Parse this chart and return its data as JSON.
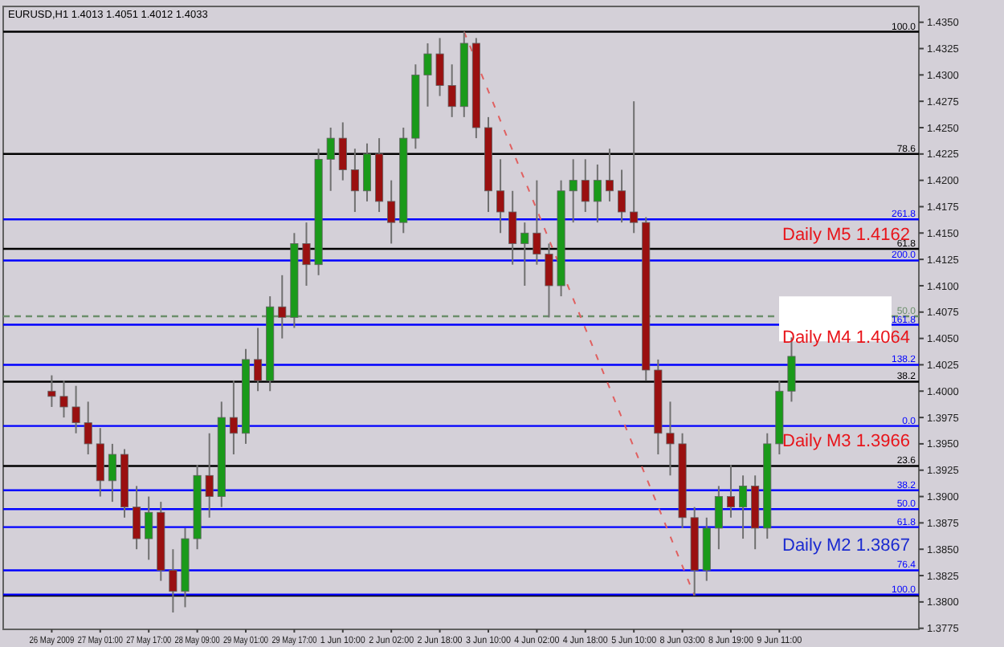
{
  "chart_data": {
    "type": "candlestick",
    "title": "EURUSD,H1  1.4013 1.4051 1.4012 1.4033",
    "categories": [
      "26 May 2009",
      null,
      null,
      null,
      "27 May 01:00",
      null,
      null,
      null,
      "27 May 17:00",
      null,
      null,
      null,
      "28 May 09:00",
      null,
      null,
      null,
      "29 May 01:00",
      null,
      null,
      null,
      "29 May 17:00",
      null,
      null,
      null,
      "1 Jun 10:00",
      null,
      null,
      null,
      "2 Jun 02:00",
      null,
      null,
      null,
      "2 Jun 18:00",
      null,
      null,
      null,
      "3 Jun 10:00",
      null,
      null,
      null,
      "4 Jun 02:00",
      null,
      null,
      null,
      "4 Jun 18:00",
      null,
      null,
      null,
      "5 Jun 10:00",
      null,
      null,
      null,
      "8 Jun 03:00",
      null,
      null,
      null,
      "8 Jun 19:00",
      null,
      null,
      null,
      "9 Jun 11:00",
      null,
      null,
      null,
      null,
      null,
      null,
      null,
      null,
      null,
      null
    ],
    "ohlc": [
      [
        1.4,
        1.4015,
        1.3985,
        1.3995
      ],
      [
        1.3995,
        1.401,
        1.3975,
        1.3985
      ],
      [
        1.3985,
        1.4005,
        1.396,
        1.397
      ],
      [
        1.397,
        1.399,
        1.394,
        1.395
      ],
      [
        1.395,
        1.3965,
        1.39,
        1.3915
      ],
      [
        1.3915,
        1.395,
        1.3895,
        1.394
      ],
      [
        1.394,
        1.3945,
        1.388,
        1.389
      ],
      [
        1.389,
        1.391,
        1.385,
        1.386
      ],
      [
        1.386,
        1.39,
        1.384,
        1.3885
      ],
      [
        1.3885,
        1.3895,
        1.382,
        1.383
      ],
      [
        1.383,
        1.385,
        1.379,
        1.381
      ],
      [
        1.381,
        1.387,
        1.3795,
        1.386
      ],
      [
        1.386,
        1.393,
        1.385,
        1.392
      ],
      [
        1.392,
        1.396,
        1.388,
        1.39
      ],
      [
        1.39,
        1.399,
        1.389,
        1.3975
      ],
      [
        1.3975,
        1.401,
        1.394,
        1.396
      ],
      [
        1.396,
        1.404,
        1.395,
        1.403
      ],
      [
        1.403,
        1.406,
        1.4,
        1.401
      ],
      [
        1.401,
        1.409,
        1.4,
        1.408
      ],
      [
        1.408,
        1.411,
        1.405,
        1.407
      ],
      [
        1.407,
        1.415,
        1.406,
        1.414
      ],
      [
        1.414,
        1.416,
        1.41,
        1.412
      ],
      [
        1.412,
        1.423,
        1.411,
        1.422
      ],
      [
        1.422,
        1.425,
        1.419,
        1.424
      ],
      [
        1.424,
        1.4255,
        1.42,
        1.421
      ],
      [
        1.421,
        1.423,
        1.417,
        1.419
      ],
      [
        1.419,
        1.4235,
        1.418,
        1.4225
      ],
      [
        1.4225,
        1.424,
        1.417,
        1.418
      ],
      [
        1.418,
        1.42,
        1.414,
        1.416
      ],
      [
        1.416,
        1.425,
        1.415,
        1.424
      ],
      [
        1.424,
        1.431,
        1.423,
        1.43
      ],
      [
        1.43,
        1.433,
        1.427,
        1.432
      ],
      [
        1.432,
        1.4335,
        1.428,
        1.429
      ],
      [
        1.429,
        1.431,
        1.426,
        1.427
      ],
      [
        1.427,
        1.4341,
        1.426,
        1.433
      ],
      [
        1.433,
        1.4335,
        1.424,
        1.425
      ],
      [
        1.425,
        1.426,
        1.417,
        1.419
      ],
      [
        1.419,
        1.422,
        1.415,
        1.417
      ],
      [
        1.417,
        1.419,
        1.412,
        1.414
      ],
      [
        1.414,
        1.416,
        1.41,
        1.415
      ],
      [
        1.415,
        1.42,
        1.412,
        1.413
      ],
      [
        1.413,
        1.414,
        1.407,
        1.41
      ],
      [
        1.41,
        1.42,
        1.409,
        1.419
      ],
      [
        1.419,
        1.422,
        1.416,
        1.42
      ],
      [
        1.42,
        1.422,
        1.417,
        1.418
      ],
      [
        1.418,
        1.4215,
        1.416,
        1.42
      ],
      [
        1.42,
        1.423,
        1.418,
        1.419
      ],
      [
        1.419,
        1.421,
        1.416,
        1.417
      ],
      [
        1.417,
        1.4275,
        1.415,
        1.416
      ],
      [
        1.416,
        1.4165,
        1.401,
        1.402
      ],
      [
        1.402,
        1.403,
        1.394,
        1.396
      ],
      [
        1.396,
        1.399,
        1.392,
        1.395
      ],
      [
        1.395,
        1.396,
        1.387,
        1.388
      ],
      [
        1.388,
        1.389,
        1.3806,
        1.383
      ],
      [
        1.383,
        1.388,
        1.382,
        1.387
      ],
      [
        1.387,
        1.391,
        1.385,
        1.39
      ],
      [
        1.39,
        1.393,
        1.388,
        1.389
      ],
      [
        1.389,
        1.392,
        1.386,
        1.391
      ],
      [
        1.391,
        1.392,
        1.385,
        1.387
      ],
      [
        1.387,
        1.396,
        1.386,
        1.395
      ],
      [
        1.395,
        1.401,
        1.394,
        1.4
      ],
      [
        1.4,
        1.4051,
        1.399,
        1.4033
      ],
      null,
      null,
      null,
      null,
      null,
      null,
      null,
      null,
      null
    ],
    "series": [
      {
        "type": "line",
        "color": "#e06060",
        "line_style": "dotted",
        "values": [
          null,
          null,
          null,
          null,
          null,
          null,
          null,
          null,
          null,
          null,
          null,
          null,
          null,
          null,
          null,
          null,
          null,
          null,
          null,
          null,
          null,
          null,
          null,
          null,
          null,
          null,
          null,
          null,
          null,
          null,
          null,
          null,
          null,
          null,
          1.4341,
          null,
          null,
          null,
          null,
          null,
          null,
          null,
          null,
          null,
          null,
          null,
          null,
          null,
          null,
          null,
          null,
          null,
          null,
          1.3806,
          null,
          null,
          null,
          null,
          null,
          null,
          null,
          null,
          null,
          null,
          null,
          null,
          null,
          null,
          null,
          null,
          null
        ]
      }
    ],
    "ylim": [
      1.3774,
      1.4365
    ],
    "yticks": [
      {
        "value": 1.3775,
        "label": "1.3775"
      },
      {
        "value": 1.38,
        "label": "1.3800"
      },
      {
        "value": 1.3825,
        "label": "1.3825"
      },
      {
        "value": 1.385,
        "label": "1.3850"
      },
      {
        "value": 1.3875,
        "label": "1.3875"
      },
      {
        "value": 1.39,
        "label": "1.3900"
      },
      {
        "value": 1.3925,
        "label": "1.3925"
      },
      {
        "value": 1.395,
        "label": "1.3950"
      },
      {
        "value": 1.3975,
        "label": "1.3975"
      },
      {
        "value": 1.4,
        "label": "1.4000"
      },
      {
        "value": 1.4025,
        "label": "1.4025"
      },
      {
        "value": 1.405,
        "label": "1.4050"
      },
      {
        "value": 1.4075,
        "label": "1.4075"
      },
      {
        "value": 1.41,
        "label": "1.4100"
      },
      {
        "value": 1.4125,
        "label": "1.4125"
      },
      {
        "value": 1.415,
        "label": "1.4150"
      },
      {
        "value": 1.4175,
        "label": "1.4175"
      },
      {
        "value": 1.42,
        "label": "1.4200"
      },
      {
        "value": 1.4225,
        "label": "1.4225"
      },
      {
        "value": 1.425,
        "label": "1.4250"
      },
      {
        "value": 1.4275,
        "label": "1.4275"
      },
      {
        "value": 1.43,
        "label": "1.4300"
      },
      {
        "value": 1.4325,
        "label": "1.4325"
      },
      {
        "value": 1.435,
        "label": "1.4350"
      }
    ],
    "ref_lines": [
      {
        "axis": "y",
        "value": 1.4341,
        "color": "#000000"
      },
      {
        "axis": "y",
        "value": 1.4225,
        "color": "#000000"
      },
      {
        "axis": "y",
        "value": 1.4135,
        "color": "#000000"
      },
      {
        "axis": "y",
        "value": 1.4071,
        "color": "#6b8e6b",
        "line_style": "dashed"
      },
      {
        "axis": "y",
        "value": 1.4009,
        "color": "#000000"
      },
      {
        "axis": "y",
        "value": 1.3929,
        "color": "#000000"
      },
      {
        "axis": "y",
        "value": 1.3806,
        "color": "#000000"
      },
      {
        "axis": "y",
        "value": 1.4163,
        "color": "#0000ff"
      },
      {
        "axis": "y",
        "value": 1.4124,
        "color": "#0000ff"
      },
      {
        "axis": "y",
        "value": 1.4063,
        "color": "#0000ff"
      },
      {
        "axis": "y",
        "value": 1.4025,
        "color": "#0000ff"
      },
      {
        "axis": "y",
        "value": 1.3967,
        "color": "#0000ff"
      },
      {
        "axis": "y",
        "value": 1.3906,
        "color": "#0000ff"
      },
      {
        "axis": "y",
        "value": 1.3888,
        "color": "#0000ff"
      },
      {
        "axis": "y",
        "value": 1.3871,
        "color": "#0000ff"
      },
      {
        "axis": "y",
        "value": 1.383,
        "color": "#0000ff"
      },
      {
        "axis": "y",
        "value": 1.3807,
        "color": "#0000ff"
      }
    ],
    "annotations": [
      {
        "text": "100.0",
        "y": 1.4341
      },
      {
        "text": "78.6",
        "y": 1.4225
      },
      {
        "text": "61.8",
        "y": 1.4135
      },
      {
        "text": "50.0",
        "y": 1.4071
      },
      {
        "text": "38.2",
        "y": 1.4009
      },
      {
        "text": "23.6",
        "y": 1.3929
      },
      {
        "text": "261.8",
        "y": 1.4163
      },
      {
        "text": "200.0",
        "y": 1.4124
      },
      {
        "text": "161.8",
        "y": 1.4063
      },
      {
        "text": "138.2",
        "y": 1.4025
      },
      {
        "text": "0.0",
        "y": 1.3967
      },
      {
        "text": "38.2",
        "y": 1.3906
      },
      {
        "text": "50.0",
        "y": 1.3888
      },
      {
        "text": "61.8",
        "y": 1.3871
      },
      {
        "text": "76.4",
        "y": 1.383
      },
      {
        "text": "100.0",
        "y": 1.3807
      },
      {
        "text": "Daily M5 1.4162",
        "y": 1.4162
      },
      {
        "text": "Daily M4 1.4064",
        "y": 1.4064
      },
      {
        "text": "Daily M3 1.3966",
        "y": 1.3966
      },
      {
        "text": "Daily M2 1.3867",
        "y": 1.3867
      }
    ]
  }
}
